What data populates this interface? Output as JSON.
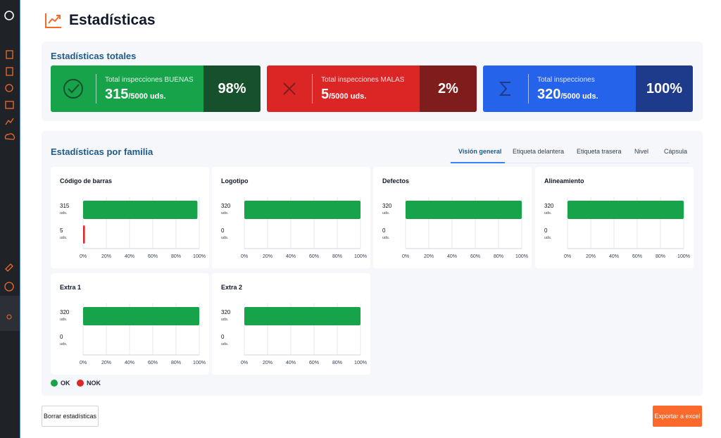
{
  "header": {
    "title": "Estadísticas"
  },
  "totals": {
    "title": "Estadísticas totales",
    "cards": [
      {
        "label": "Total inspecciones BUENAS",
        "value": "315",
        "suffix": "/5000 uds.",
        "percent": "98%",
        "color": "#16a34a",
        "dark": "#17502c"
      },
      {
        "label": "Total inspecciones MALAS",
        "value": "5",
        "suffix": "/5000 uds.",
        "percent": "2%",
        "color": "#dc2626",
        "dark": "#7f1d1d"
      },
      {
        "label": "Total inspecciones",
        "value": "320",
        "suffix": "/5000 uds.",
        "percent": "100%",
        "color": "#2563eb",
        "dark": "#1e3a8a"
      }
    ]
  },
  "families": {
    "title": "Estadísticas por familia",
    "tabs": [
      "Visión general",
      "Etiqueta delantera",
      "Etiqueta trasera",
      "Nivel",
      "Cápsula"
    ],
    "unit": "uds.",
    "xlim": [
      0,
      320
    ],
    "xticks": [
      {
        "value": 0,
        "label": "0%"
      },
      {
        "value": 64,
        "label": "20%"
      },
      {
        "value": 128,
        "label": "40%"
      },
      {
        "value": 192,
        "label": "60%"
      },
      {
        "value": 256,
        "label": "80%"
      },
      {
        "value": 320,
        "label": "100%"
      }
    ],
    "ok_color": "#16a34a",
    "nok_color": "#dc2626",
    "charts": [
      {
        "name": "Código de barras",
        "ok": 315,
        "nok": 5
      },
      {
        "name": "Logotipo",
        "ok": 320,
        "nok": 0
      },
      {
        "name": "Defectos",
        "ok": 320,
        "nok": 0
      },
      {
        "name": "Alineamiento",
        "ok": 320,
        "nok": 0
      },
      {
        "name": "Extra 1",
        "ok": 320,
        "nok": 0
      },
      {
        "name": "Extra 2",
        "ok": 320,
        "nok": 0
      }
    ],
    "legend": [
      "OK",
      "NOK"
    ]
  },
  "buttons": {
    "clear": "Borrar estadísticas",
    "export": "Exportar a excel"
  }
}
